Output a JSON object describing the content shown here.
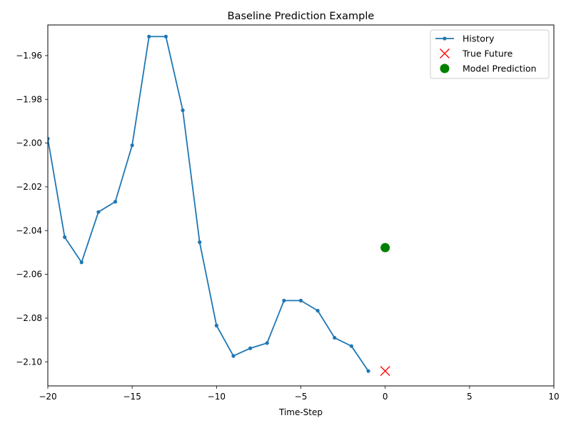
{
  "chart_data": {
    "type": "line",
    "title": "Baseline Prediction Example",
    "xlabel": "Time-Step",
    "ylabel": "",
    "xlim": [
      -20,
      10
    ],
    "ylim": [
      -2.111,
      -1.946
    ],
    "xticks": [
      -20,
      -15,
      -10,
      -5,
      0,
      5,
      10
    ],
    "xtick_labels": [
      "−20",
      "−15",
      "−10",
      "−5",
      "0",
      "5",
      "10"
    ],
    "yticks": [
      -1.96,
      -1.98,
      -2.0,
      -2.02,
      -2.04,
      -2.06,
      -2.08,
      -2.1
    ],
    "ytick_labels": [
      "−1.96",
      "−1.98",
      "−2.00",
      "−2.02",
      "−2.04",
      "−2.06",
      "−2.08",
      "−2.10"
    ],
    "grid": false,
    "legend_position": "top-right",
    "series": [
      {
        "name": "History",
        "kind": "line-with-markers",
        "color": "#1f77b4",
        "x": [
          -20,
          -19,
          -18,
          -17,
          -16,
          -15,
          -14,
          -13,
          -12,
          -11,
          -10,
          -9,
          -8,
          -7,
          -6,
          -5,
          -4,
          -3,
          -2,
          -1
        ],
        "y": [
          -1.998,
          -2.043,
          -2.0545,
          -2.0315,
          -2.0268,
          -2.001,
          -1.9513,
          -1.9513,
          -1.985,
          -2.0453,
          -2.0834,
          -2.0973,
          -2.0938,
          -2.0914,
          -2.072,
          -2.072,
          -2.0766,
          -2.089,
          -2.0928,
          -2.1042
        ]
      },
      {
        "name": "True Future",
        "kind": "x-marker",
        "color": "#ff0000",
        "x": [
          0
        ],
        "y": [
          -2.1042
        ]
      },
      {
        "name": "Model Prediction",
        "kind": "filled-circle",
        "color": "#008000",
        "x": [
          0
        ],
        "y": [
          -2.0478
        ]
      }
    ]
  }
}
